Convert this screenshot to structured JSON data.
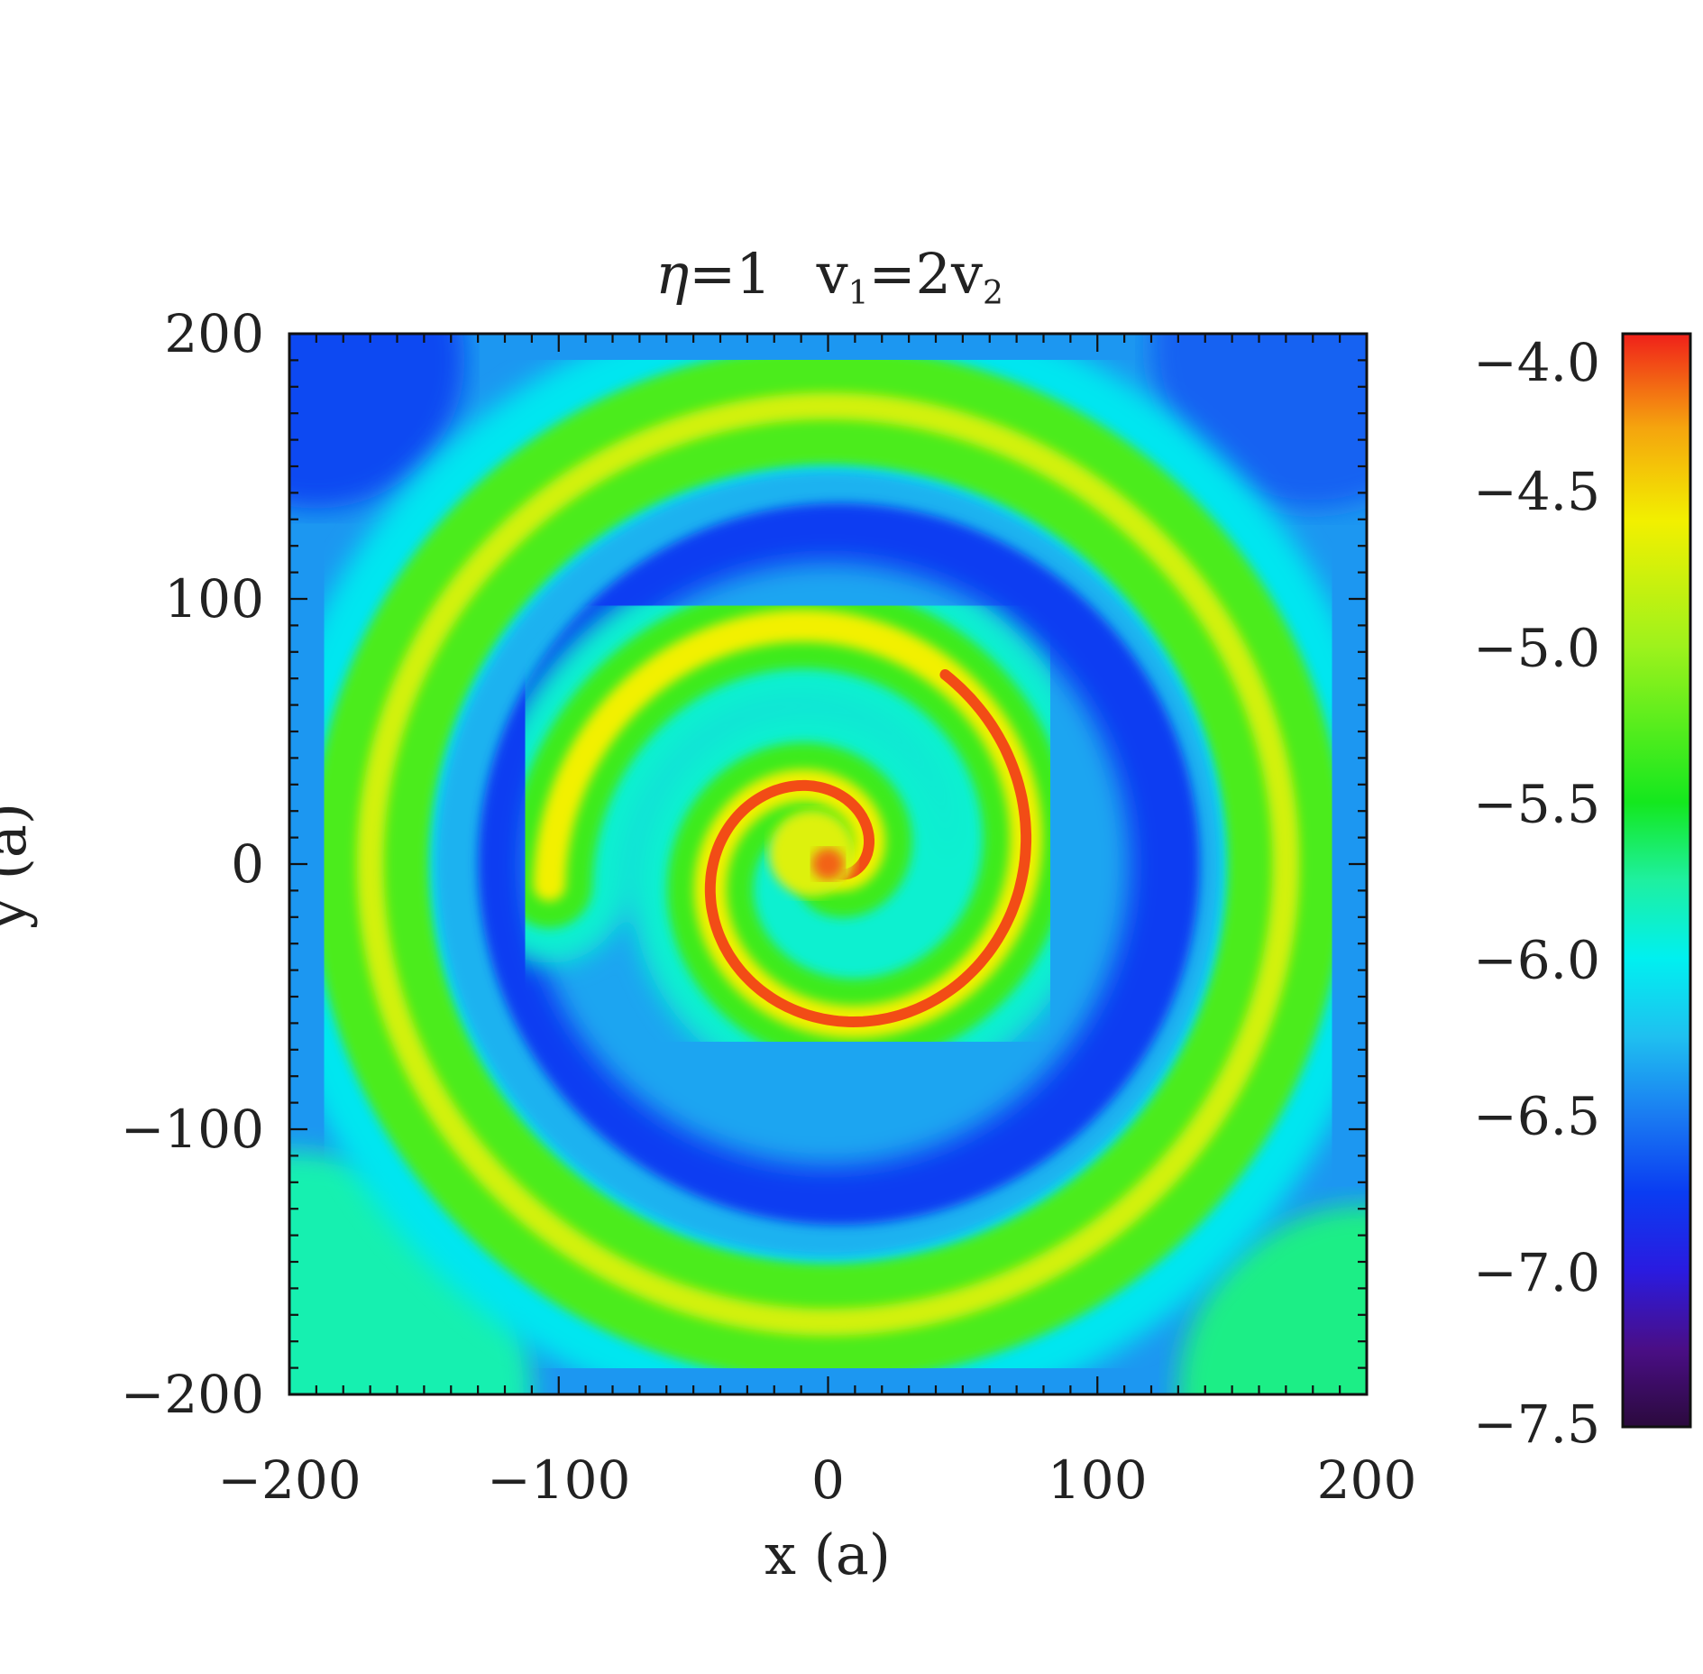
{
  "chart_data": {
    "type": "heatmap",
    "title": {
      "eta_symbol": "η",
      "eta_value": "=1",
      "v1": "v",
      "v1_sub": "1",
      "eq": "=2v",
      "v2_sub": "2"
    },
    "xlabel": "x (a)",
    "ylabel": "y (a)",
    "xlim": [
      -200,
      200
    ],
    "ylim": [
      -200,
      200
    ],
    "x_ticks": [
      {
        "value": -200,
        "label": "−200"
      },
      {
        "value": -100,
        "label": "−100"
      },
      {
        "value": 0,
        "label": "0"
      },
      {
        "value": 100,
        "label": "100"
      },
      {
        "value": 200,
        "label": "200"
      }
    ],
    "y_ticks": [
      {
        "value": -200,
        "label": "−200"
      },
      {
        "value": -100,
        "label": "−100"
      },
      {
        "value": 0,
        "label": "0"
      },
      {
        "value": 100,
        "label": "100"
      },
      {
        "value": 200,
        "label": "200"
      }
    ],
    "colorbar": {
      "range": [
        -7.5,
        -4.0
      ],
      "ticks": [
        {
          "value": -4.0,
          "label": "−4.0"
        },
        {
          "value": -4.5,
          "label": "−4.5"
        },
        {
          "value": -5.0,
          "label": "−5.0"
        },
        {
          "value": -5.5,
          "label": "−5.5"
        },
        {
          "value": -6.0,
          "label": "−6.0"
        },
        {
          "value": -6.5,
          "label": "−6.5"
        },
        {
          "value": -7.0,
          "label": "−7.0"
        },
        {
          "value": -7.5,
          "label": "−7.5"
        }
      ],
      "colors": [
        {
          "value": -7.5,
          "color": "#2b0a3d"
        },
        {
          "value": -7.25,
          "color": "#4a0e86"
        },
        {
          "value": -7.0,
          "color": "#2a1be0"
        },
        {
          "value": -6.75,
          "color": "#0a3cf2"
        },
        {
          "value": -6.5,
          "color": "#1a7cf2"
        },
        {
          "value": -6.25,
          "color": "#1fc0f0"
        },
        {
          "value": -6.0,
          "color": "#00f0f0"
        },
        {
          "value": -5.75,
          "color": "#1ef0a0"
        },
        {
          "value": -5.5,
          "color": "#14e81e"
        },
        {
          "value": -5.0,
          "color": "#9ef21c"
        },
        {
          "value": -4.6,
          "color": "#f2f000"
        },
        {
          "value": -4.3,
          "color": "#f5a40e"
        },
        {
          "value": -4.0,
          "color": "#f0201a"
        }
      ]
    },
    "field": {
      "background": -6.4,
      "outer_shell_radius": 170,
      "outer_shell_value": -5.3,
      "cavity_radius": 140,
      "cavity_value": -6.75,
      "spiral_peak": -4.1
    }
  }
}
